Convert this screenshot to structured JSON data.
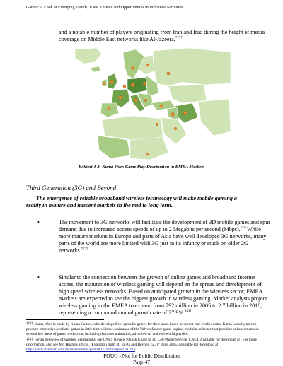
{
  "header": {
    "running_title": "Games:  A Look at Emerging Trends, Uses, Threats and Opportunities in Influence Activities"
  },
  "intro": {
    "text": "and a notable number of players originating from Iran and Iraq during the height of media coverage on Middle East networks like Al-Jazeera.",
    "note_mark": "††††"
  },
  "figure": {
    "colors": {
      "ocean": "#ffffff",
      "land_light": "#cfe3b4",
      "land_mid": "#a9cc85",
      "land_dark": "#6fa24a",
      "land_deep": "#4f8a34",
      "border": "#ffffff",
      "marker": "#e8892a",
      "marker_edge": "#b5621a"
    },
    "caption": "Exhibit 4-2: Kuma Wars Game Play Distribution in EMEA Markets"
  },
  "section": {
    "heading": "Third Generation (3G) and Beyond",
    "lead": "The emergence of reliable broadband wireless technology will make mobile gaming a reality in mature and nascent markets in the mid to long term."
  },
  "bullets": [
    {
      "symbol": "•",
      "part1": "The movement to 3G networks will facilitate the development of 3D mobile games and spur demand due to increased access speeds of up to 2 Megabits per second (Mbps).",
      "mark1": "xxx",
      "part2": " While more mature markets in Europe and parts of Asia have well developed 3G networks, many parts of the world are more limited with 3G just in its infancy or stuck on older 2G networks.",
      "mark2": "‡‡‡‡"
    },
    {
      "symbol": "•",
      "part1": "Similar to the connection between the growth of online games and broadband Internet access, the maturation of wireless gaming will depend on the spread and development of high speed wireless networks. Based on anticipated growth in the wireless sector, EMEA markets are expected to see the biggest growth in wireless gaming. Market analysts project wireless gaming in the EMEA to expand from 792 million in 2005 to 2.7 billion in 2010, representing a compound annual growth rate of 27.9%.",
      "mark1": "xxxi"
    }
  ],
  "footnotes": [
    {
      "mark": "††††",
      "text": " Kuma Wars is made by Kuma Games, who develops free, episodic games for their users based on recent real world events. Kuma is easily able to produce immersive, realistic games in little time with the assistance of the Valve's Source game engine,  modular software that provides enhancements in several key areas of game production, including character animation, advanced AI and real-world physics."
    },
    {
      "mark": "‡‡‡‡",
      "text": " For an overview of wireless generations, see CNET Review: Quick Guide to 3G Cell Phone Service. CNET. Available for download at . For more information, also see Mr. Huang's article, \"Evolution from 3G to 4G and Beyond (5G).\" June 2005. Available for download at",
      "link": "http://www.daniweb.com/techtalkforums/post180324.html#post180324"
    }
  ],
  "footer": {
    "line1": "FOUO - Not for Public Distribution",
    "line2": "Page 47"
  }
}
